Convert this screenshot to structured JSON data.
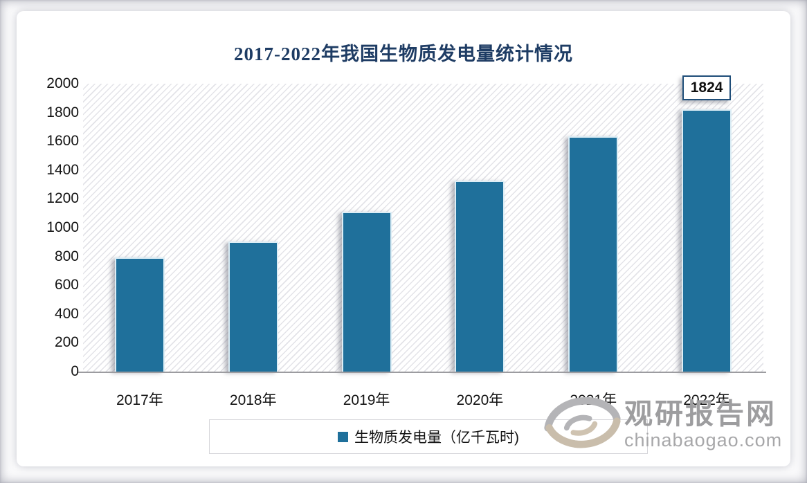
{
  "chart_data": {
    "type": "bar",
    "title": "2017-2022年我国生物质发电量统计情况",
    "categories": [
      "2017年",
      "2018年",
      "2019年",
      "2020年",
      "2021年",
      "2022年"
    ],
    "series": [
      {
        "name": "生物质发电量（亿千瓦时)",
        "values": [
          794,
          906,
          1111,
          1326,
          1637,
          1824
        ]
      }
    ],
    "ylim": [
      0,
      2000
    ],
    "ytick_step": 200,
    "grid": "none",
    "legend_position": "bottom",
    "plot_background": "diagonal-hatch",
    "bar_color": "#1f709b",
    "title_color": "#1e3c64",
    "data_labels": [
      {
        "category": "2022年",
        "value": "1824"
      }
    ]
  },
  "watermark": {
    "brand_cn": "观研报告网",
    "brand_url": "chinabaogao.com",
    "logo": "swirl-eye-logo"
  }
}
